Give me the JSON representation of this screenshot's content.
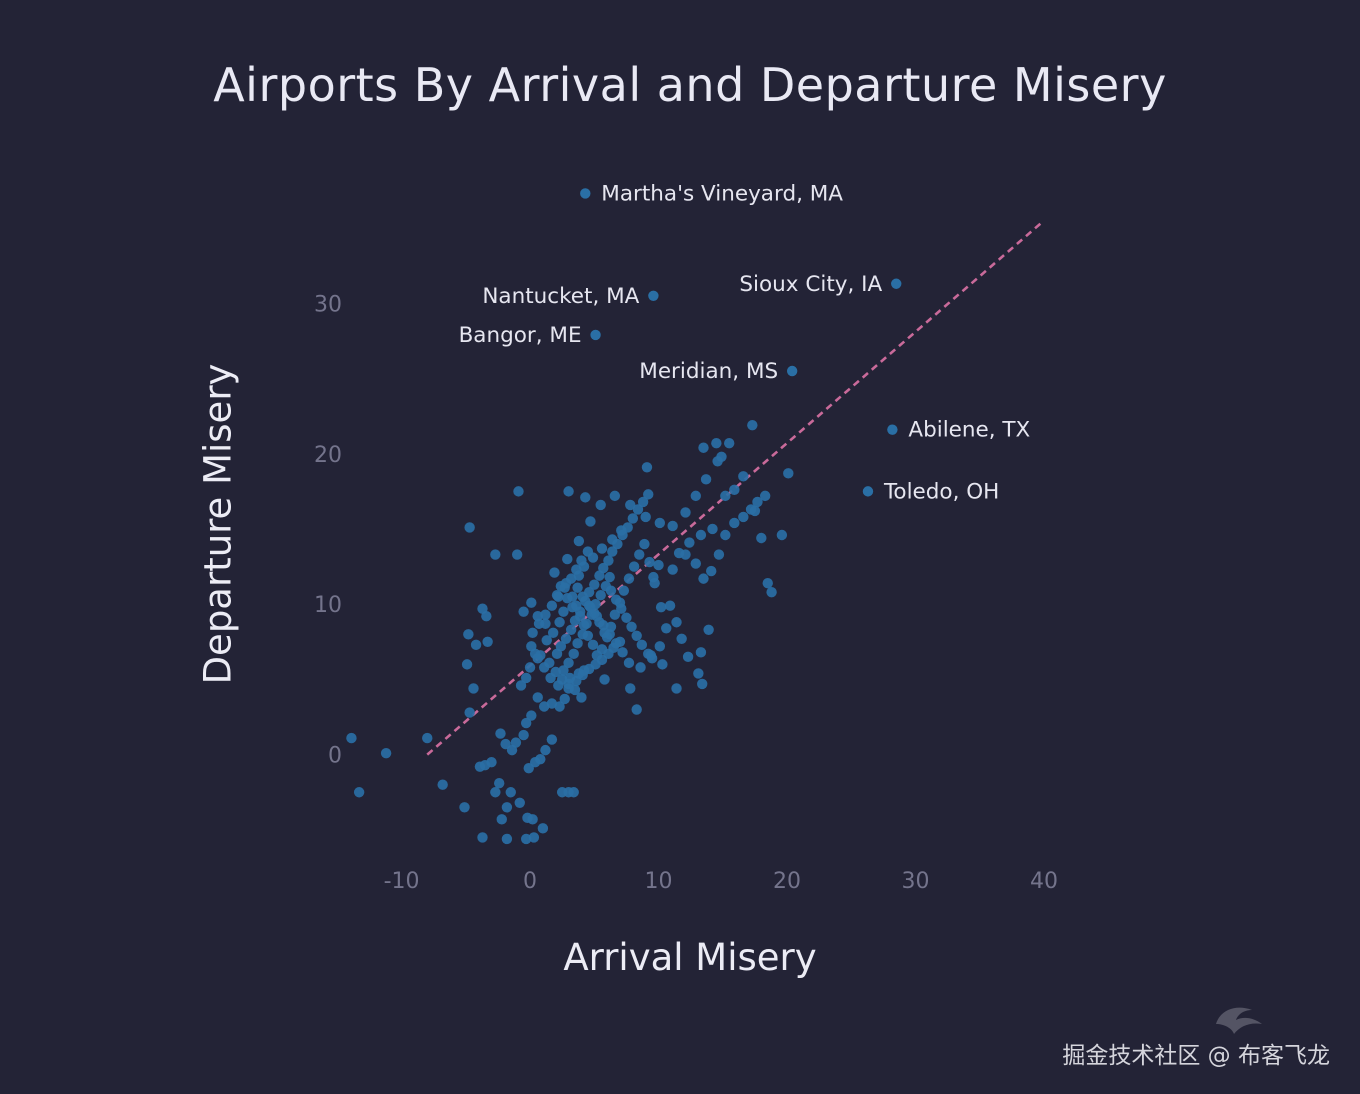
{
  "chart_data": {
    "type": "scatter",
    "title": "Airports By Arrival and Departure Misery",
    "xlabel": "Arrival Misery",
    "ylabel": "Departure Misery",
    "xlim": [
      -13,
      40
    ],
    "ylim": [
      -8,
      37
    ],
    "xticks": [
      -10,
      0,
      10,
      20,
      30,
      40
    ],
    "yticks": [
      0,
      10,
      20,
      30
    ],
    "colors": {
      "background": "#232336",
      "points": "#2a6fa5",
      "trend": "#c96a9a",
      "ticks": "#74748c",
      "text": "#e6e6f0"
    },
    "trend_line": {
      "from": [
        -8,
        0
      ],
      "to": [
        40,
        35.5
      ]
    },
    "labeled_points": [
      {
        "label": "Martha's Vineyard, MA",
        "x": 4.3,
        "y": 37.3,
        "side": "right"
      },
      {
        "label": "Sioux City, IA",
        "x": 28.5,
        "y": 31.3,
        "side": "left"
      },
      {
        "label": "Nantucket, MA",
        "x": 9.6,
        "y": 30.5,
        "side": "left"
      },
      {
        "label": "Bangor, ME",
        "x": 5.1,
        "y": 27.9,
        "side": "left"
      },
      {
        "label": "Meridian, MS",
        "x": 20.4,
        "y": 25.5,
        "side": "left"
      },
      {
        "label": "Abilene, TX",
        "x": 28.2,
        "y": 21.6,
        "side": "right"
      },
      {
        "label": "Toledo, OH",
        "x": 26.3,
        "y": 17.5,
        "side": "right"
      }
    ],
    "points": [
      [
        -13.9,
        1.1
      ],
      [
        -11.2,
        0.1
      ],
      [
        -13.3,
        -2.5
      ],
      [
        -8,
        1.1
      ],
      [
        -6.8,
        -2
      ],
      [
        -5.1,
        -3.5
      ],
      [
        -4.7,
        2.8
      ],
      [
        -4.4,
        4.4
      ],
      [
        -4.9,
        6
      ],
      [
        -4.2,
        7.3
      ],
      [
        -4.8,
        8
      ],
      [
        -3.7,
        9.7
      ],
      [
        -3.4,
        9.2
      ],
      [
        -3.3,
        7.5
      ],
      [
        -4.7,
        15.1
      ],
      [
        -2.7,
        13.3
      ],
      [
        -1,
        13.3
      ],
      [
        -0.9,
        17.5
      ],
      [
        -2.7,
        -2.5
      ],
      [
        -1.8,
        -5.6
      ],
      [
        -1.5,
        -2.5
      ],
      [
        -0.2,
        -4.2
      ],
      [
        -2.2,
        -4.3
      ],
      [
        -3.7,
        -5.5
      ],
      [
        -2.4,
        -1.9
      ],
      [
        -0.8,
        -3.2
      ],
      [
        -1.8,
        -3.5
      ],
      [
        -3.5,
        -0.7
      ],
      [
        -3.9,
        -0.8
      ],
      [
        -3,
        -0.5
      ],
      [
        -2.3,
        1.4
      ],
      [
        -1.9,
        0.7
      ],
      [
        -1.4,
        0.3
      ],
      [
        -1.1,
        0.8
      ],
      [
        -0.5,
        1.3
      ],
      [
        -0.1,
        -0.9
      ],
      [
        0.4,
        -0.5
      ],
      [
        0.8,
        -0.3
      ],
      [
        1.2,
        0.3
      ],
      [
        1.7,
        1
      ],
      [
        0.2,
        -4.3
      ],
      [
        -0.3,
        -5.6
      ],
      [
        0.3,
        -5.5
      ],
      [
        1,
        -4.9
      ],
      [
        2.5,
        -2.5
      ],
      [
        3.4,
        -2.5
      ],
      [
        3,
        -2.5
      ],
      [
        -0.3,
        2.1
      ],
      [
        0.1,
        2.6
      ],
      [
        0.6,
        3.8
      ],
      [
        1.1,
        3.2
      ],
      [
        1.7,
        3.4
      ],
      [
        2.3,
        3.2
      ],
      [
        2.7,
        3.7
      ],
      [
        3,
        4.4
      ],
      [
        3.8,
        5.4
      ],
      [
        4.2,
        5.6
      ],
      [
        5.8,
        5
      ],
      [
        7.8,
        4.4
      ],
      [
        8.3,
        3
      ],
      [
        -0.7,
        4.6
      ],
      [
        -0.3,
        5.1
      ],
      [
        0,
        5.8
      ],
      [
        0.4,
        6.7
      ],
      [
        0.1,
        7.2
      ],
      [
        0.8,
        6.6
      ],
      [
        1.3,
        7.6
      ],
      [
        -0.5,
        9.5
      ],
      [
        0.1,
        10.1
      ],
      [
        0.6,
        9.2
      ],
      [
        1.2,
        8.7
      ],
      [
        1.8,
        8.1
      ],
      [
        2.3,
        8.8
      ],
      [
        2.6,
        9.5
      ],
      [
        2.1,
        10.6
      ],
      [
        2.8,
        11.4
      ],
      [
        3.3,
        10.5
      ],
      [
        3.6,
        9.9
      ],
      [
        3.9,
        9.2
      ],
      [
        4.2,
        8.6
      ],
      [
        4.5,
        7.9
      ],
      [
        4.9,
        7.3
      ],
      [
        5.2,
        6.6
      ],
      [
        5.6,
        7
      ],
      [
        6,
        7.8
      ],
      [
        6.3,
        8.5
      ],
      [
        6.6,
        9.3
      ],
      [
        7,
        10.1
      ],
      [
        7.3,
        10.9
      ],
      [
        7.7,
        11.7
      ],
      [
        8.1,
        12.5
      ],
      [
        8.5,
        13.3
      ],
      [
        8.9,
        14
      ],
      [
        9.3,
        12.8
      ],
      [
        9.7,
        11.4
      ],
      [
        10.2,
        9.8
      ],
      [
        10.6,
        8.4
      ],
      [
        10.1,
        7.2
      ],
      [
        9.4,
        6.6
      ],
      [
        8.6,
        5.8
      ],
      [
        2.1,
        6.7
      ],
      [
        2.4,
        7.2
      ],
      [
        2.8,
        7.7
      ],
      [
        3.2,
        8.3
      ],
      [
        3.5,
        8.9
      ],
      [
        3.9,
        9.5
      ],
      [
        4.3,
        10.2
      ],
      [
        4.6,
        10.8
      ],
      [
        5,
        11.3
      ],
      [
        5.4,
        11.9
      ],
      [
        5.7,
        12.4
      ],
      [
        6.1,
        12.9
      ],
      [
        6.4,
        13.5
      ],
      [
        6.8,
        14
      ],
      [
        7.2,
        14.6
      ],
      [
        7.6,
        15.1
      ],
      [
        8,
        15.7
      ],
      [
        8.4,
        16.3
      ],
      [
        8.8,
        16.8
      ],
      [
        9.2,
        17.3
      ],
      [
        3,
        6.1
      ],
      [
        3.4,
        6.7
      ],
      [
        3.7,
        7.4
      ],
      [
        4.1,
        8
      ],
      [
        4.4,
        8.7
      ],
      [
        4.8,
        9.3
      ],
      [
        5.1,
        10
      ],
      [
        5.5,
        10.6
      ],
      [
        5.9,
        11.2
      ],
      [
        6.2,
        11.8
      ],
      [
        2.6,
        5.6
      ],
      [
        3.1,
        5.1
      ],
      [
        3.6,
        4.9
      ],
      [
        4.1,
        5.3
      ],
      [
        4.6,
        5.7
      ],
      [
        5.1,
        6
      ],
      [
        5.6,
        6.3
      ],
      [
        6.1,
        6.7
      ],
      [
        6.5,
        7.1
      ],
      [
        7,
        7.5
      ],
      [
        4.7,
        9.8
      ],
      [
        5.2,
        9.2
      ],
      [
        5.7,
        8.6
      ],
      [
        6.2,
        8
      ],
      [
        6.7,
        7.4
      ],
      [
        7.2,
        6.8
      ],
      [
        7.7,
        6.1
      ],
      [
        3.8,
        11.9
      ],
      [
        4.2,
        12.5
      ],
      [
        4.9,
        13.1
      ],
      [
        5.6,
        13.7
      ],
      [
        6.4,
        14.3
      ],
      [
        7.1,
        14.9
      ],
      [
        2.9,
        13
      ],
      [
        3.8,
        14.2
      ],
      [
        4.7,
        15.5
      ],
      [
        5.5,
        16.6
      ],
      [
        6.6,
        17.2
      ],
      [
        3,
        17.5
      ],
      [
        4.3,
        17.1
      ],
      [
        7.8,
        16.6
      ],
      [
        9,
        15.8
      ],
      [
        10.1,
        15.4
      ],
      [
        11.1,
        15.2
      ],
      [
        12.1,
        16.1
      ],
      [
        12.9,
        17.2
      ],
      [
        13.7,
        18.3
      ],
      [
        14.6,
        19.5
      ],
      [
        15.5,
        20.7
      ],
      [
        9.1,
        19.1
      ],
      [
        13.5,
        20.4
      ],
      [
        14.5,
        20.7
      ],
      [
        14.9,
        19.8
      ],
      [
        15.2,
        17.2
      ],
      [
        15.9,
        17.6
      ],
      [
        16.6,
        18.5
      ],
      [
        17.2,
        16.3
      ],
      [
        17.7,
        16.8
      ],
      [
        18.3,
        17.2
      ],
      [
        17.3,
        21.9
      ],
      [
        20.1,
        18.7
      ],
      [
        12.1,
        13.3
      ],
      [
        12.9,
        12.7
      ],
      [
        13.5,
        11.7
      ],
      [
        14.1,
        12.2
      ],
      [
        14.7,
        13.3
      ],
      [
        15.2,
        14.6
      ],
      [
        15.9,
        15.4
      ],
      [
        16.6,
        15.8
      ],
      [
        17.5,
        16.2
      ],
      [
        11.1,
        12.3
      ],
      [
        11.6,
        13.4
      ],
      [
        12.4,
        14.1
      ],
      [
        13.3,
        14.6
      ],
      [
        14.2,
        15
      ],
      [
        18,
        14.4
      ],
      [
        19.6,
        14.6
      ],
      [
        18.5,
        11.4
      ],
      [
        18.8,
        10.8
      ],
      [
        10.9,
        9.9
      ],
      [
        11.4,
        8.8
      ],
      [
        11.8,
        7.7
      ],
      [
        12.3,
        6.5
      ],
      [
        13.1,
        5.4
      ],
      [
        13.4,
        4.7
      ],
      [
        9.5,
        6.4
      ],
      [
        10.3,
        6
      ],
      [
        11.4,
        4.4
      ],
      [
        13.3,
        6.8
      ],
      [
        13.9,
        8.3
      ],
      [
        2.2,
        4.6
      ],
      [
        1.6,
        5.1
      ],
      [
        1.1,
        5.8
      ],
      [
        0.6,
        6.4
      ],
      [
        1.5,
        6.1
      ],
      [
        2,
        5.5
      ],
      [
        2.5,
        5
      ],
      [
        3,
        4.7
      ],
      [
        3.5,
        4.3
      ],
      [
        4,
        3.8
      ],
      [
        1.9,
        12.1
      ],
      [
        2.4,
        11.2
      ],
      [
        2.9,
        10.4
      ],
      [
        3.3,
        9.8
      ],
      [
        3.7,
        11.1
      ],
      [
        4.1,
        10.5
      ],
      [
        4.6,
        9.9
      ],
      [
        5,
        9.4
      ],
      [
        5.4,
        8.8
      ],
      [
        5.8,
        8.1
      ],
      [
        6.3,
        10.9
      ],
      [
        6.7,
        10.3
      ],
      [
        7.1,
        9.7
      ],
      [
        7.5,
        9.1
      ],
      [
        7.9,
        8.5
      ],
      [
        8.3,
        7.9
      ],
      [
        8.7,
        7.3
      ],
      [
        9.2,
        6.7
      ],
      [
        9.6,
        11.8
      ],
      [
        10,
        12.6
      ],
      [
        0.2,
        8.1
      ],
      [
        0.7,
        8.7
      ],
      [
        1.2,
        9.3
      ],
      [
        1.7,
        9.9
      ],
      [
        2.2,
        10.5
      ],
      [
        2.7,
        11.1
      ],
      [
        3.2,
        11.7
      ],
      [
        3.6,
        12.3
      ],
      [
        4,
        12.9
      ],
      [
        4.5,
        13.5
      ]
    ]
  },
  "watermark": "掘金技术社区 @ 布客飞龙"
}
